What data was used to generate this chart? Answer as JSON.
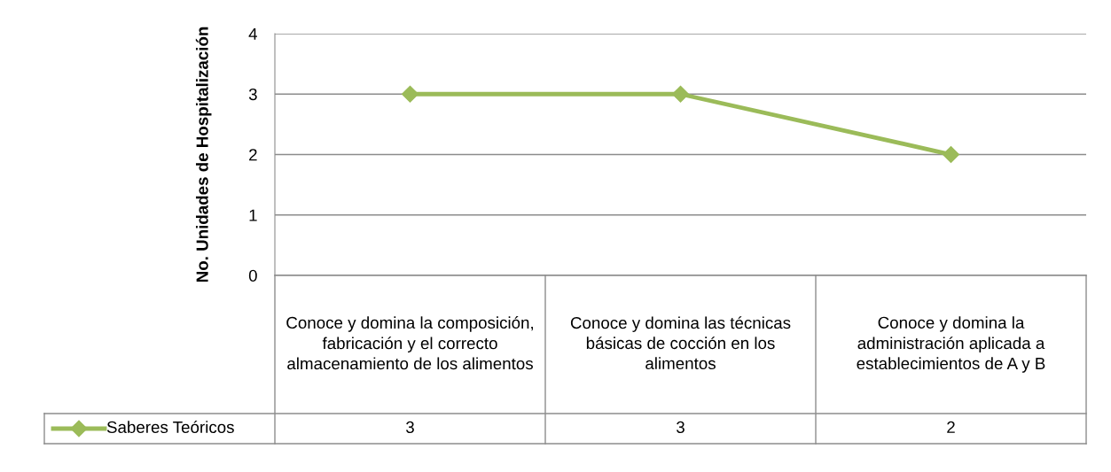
{
  "chart_data": {
    "type": "line",
    "ylabel": "No. Unidades de Hospitalización",
    "categories": [
      "Conoce y domina la composición, fabricación y el correcto almacenamiento de los alimentos",
      "Conoce y domina las técnicas básicas de cocción en los alimentos",
      "Conoce y domina la administración aplicada a establecimientos de A y B"
    ],
    "series": [
      {
        "name": "Saberes Teóricos",
        "color": "#9bbb59",
        "values": [
          3,
          3,
          2
        ]
      }
    ],
    "ylim": [
      0,
      4
    ],
    "yticks": [
      0,
      1,
      2,
      3,
      4
    ],
    "grid": "y",
    "marker": "diamond",
    "line_style": "solid",
    "legend": "bottom",
    "data_labels": true
  }
}
